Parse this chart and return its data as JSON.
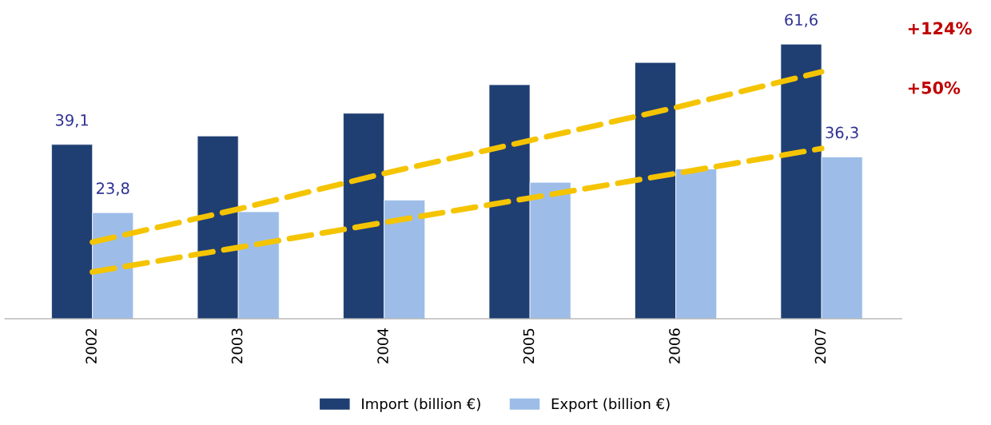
{
  "chart_data": {
    "type": "bar",
    "tick_labels": "x",
    "categories": [
      "2002",
      "2003",
      "2004",
      "2005",
      "2006",
      "2007"
    ],
    "series": [
      {
        "name": "Import (billion €)",
        "color": "#1f3f73",
        "values": [
          39.1,
          41.0,
          46.1,
          52.5,
          57.5,
          61.6
        ],
        "value_labels": [
          "39,1",
          null,
          null,
          null,
          null,
          "61,6"
        ]
      },
      {
        "name": "Export (billion €)",
        "color": "#9dbde8",
        "values": [
          23.8,
          24.0,
          26.6,
          30.6,
          33.6,
          36.3
        ],
        "value_labels": [
          "23,8",
          null,
          null,
          null,
          null,
          "36,3"
        ]
      },
      {
        "type": "line",
        "color": "#f5c400",
        "line_style": "dashed",
        "values": [
          17.2,
          24.6,
          32.6,
          40.0,
          47.4,
          55.4
        ]
      },
      {
        "type": "line",
        "color": "#f5c400",
        "line_style": "dashed",
        "values": [
          10.5,
          16.0,
          21.6,
          27.1,
          32.6,
          38.2
        ]
      }
    ],
    "annotations": [
      "+124%",
      "+50%"
    ],
    "legend": "bottom",
    "grid": false
  }
}
